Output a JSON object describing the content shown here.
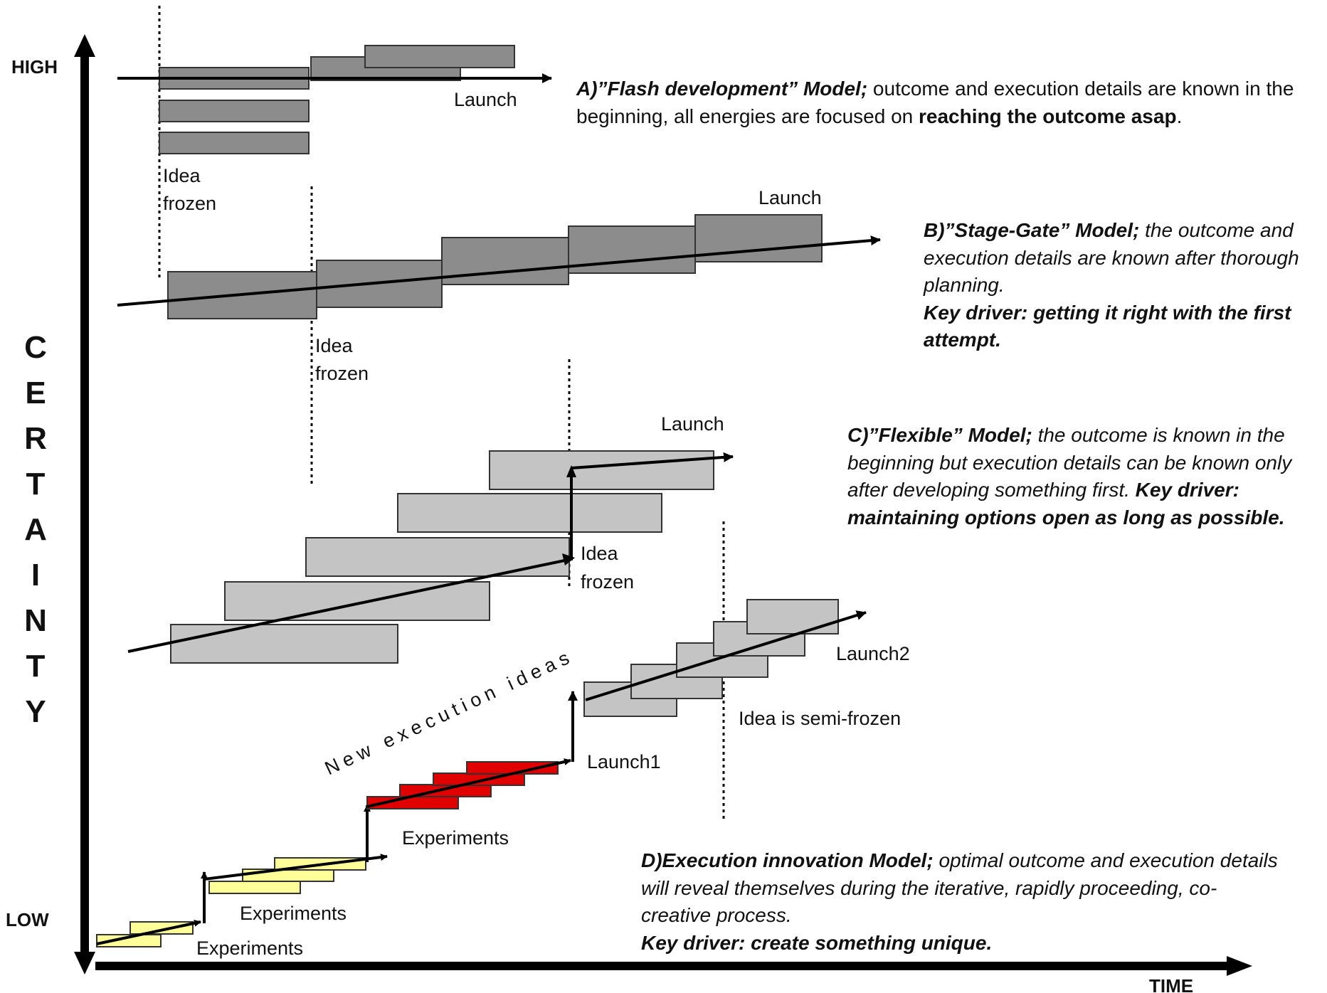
{
  "axes": {
    "y_high": "HIGH",
    "y_low": "LOW",
    "x_label": "TIME",
    "y_title_letters": [
      "C",
      "E",
      "R",
      "T",
      "A",
      "I",
      "N",
      "T",
      "Y"
    ]
  },
  "colors": {
    "dark_gray": "#8c8c8c",
    "light_gray": "#c4c4c4",
    "yellow": "#ffff99",
    "red": "#e00000",
    "line": "#000000"
  },
  "model_a": {
    "launch_label": "Launch",
    "idea_frozen": [
      "Idea",
      "frozen"
    ],
    "desc": {
      "title": "A)”Flash development” Model;",
      "line1_rest": " outcome and execution details are known in the",
      "line2_pre": "beginning, all energies are focused on ",
      "line2_bold": "reaching the outcome asap",
      "line2_end": "."
    }
  },
  "model_b": {
    "launch_label": "Launch",
    "idea_frozen": [
      "Idea",
      "frozen"
    ],
    "desc": {
      "title": "B)”Stage-Gate” Model;",
      "line1_rest": " the outcome and",
      "line2": "execution details are known after thorough",
      "line3": "planning.",
      "line4_key": "Key driver",
      "line4_rest": ": getting it right with the first",
      "line5": "attempt."
    }
  },
  "model_c": {
    "launch_label": "Launch",
    "idea_frozen": [
      "Idea",
      "frozen"
    ],
    "desc": {
      "title": "C)”Flexible” Model;",
      "line1_rest": " the outcome is known in the",
      "line2": "beginning but execution details can be known only",
      "line3_pre": "after developing something first. ",
      "line3_bold": "Key driver:",
      "line4": "maintaining options open as long as possible."
    }
  },
  "model_d": {
    "experiments_1": "Experiments",
    "experiments_2": "Experiments",
    "experiments_3": "Experiments",
    "launch1": "Launch1",
    "launch2": "Launch2",
    "semi_frozen": "Idea is semi-frozen",
    "new_ideas": "New execution ideas",
    "desc": {
      "title": "D)Execution innovation Model;",
      "line1_rest": " optimal outcome and execution details",
      "line2": "will reveal themselves during the iterative, rapidly proceeding, co-",
      "line3": "creative process.",
      "line4": "Key driver: create something unique."
    }
  }
}
